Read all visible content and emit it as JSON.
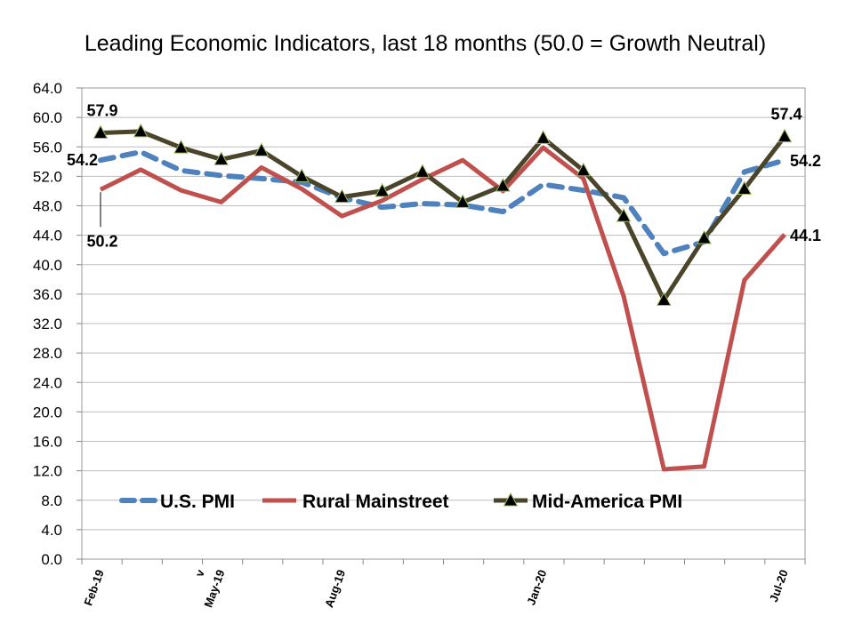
{
  "chart_data": {
    "type": "line",
    "title": "Leading Economic Indicators, last 18 months (50.0 = Growth Neutral)",
    "xlabel": "",
    "ylabel": "",
    "ylim": [
      0,
      64
    ],
    "yticks": [
      "0.0",
      "4.0",
      "8.0",
      "12.0",
      "16.0",
      "20.0",
      "24.0",
      "28.0",
      "32.0",
      "36.0",
      "40.0",
      "44.0",
      "48.0",
      "52.0",
      "56.0",
      "60.0",
      "64.0"
    ],
    "x_tick_labels": [
      {
        "index": 0,
        "label": "Feb-19"
      },
      {
        "index": 2.5,
        "label": "v"
      },
      {
        "index": 3,
        "label": "May-19"
      },
      {
        "index": 6,
        "label": "Aug-19"
      },
      {
        "index": 11,
        "label": "Jan-20"
      },
      {
        "index": 17,
        "label": "Jul-20"
      }
    ],
    "grid": true,
    "legend_position": "lower-left",
    "series": [
      {
        "name": "U.S. PMI",
        "color": "#4f81bd",
        "style": "dashed",
        "marker": "none",
        "values": [
          54.2,
          55.3,
          52.8,
          52.1,
          51.7,
          51.2,
          49.1,
          47.8,
          48.3,
          48.1,
          47.2,
          50.9,
          50.1,
          49.1,
          41.5,
          43.1,
          52.6,
          54.2
        ]
      },
      {
        "name": "Rural Mainstreet",
        "color": "#c0504d",
        "style": "solid",
        "marker": "none",
        "values": [
          50.2,
          52.9,
          50.1,
          48.5,
          53.2,
          50.3,
          46.6,
          48.7,
          51.6,
          54.2,
          50.0,
          55.9,
          51.7,
          35.7,
          12.2,
          12.6,
          37.9,
          44.1
        ]
      },
      {
        "name": "Mid-America PMI",
        "color": "#4a452a",
        "style": "solid",
        "marker": "triangle",
        "values": [
          57.9,
          58.1,
          55.9,
          54.3,
          55.5,
          52.0,
          49.2,
          50.0,
          52.6,
          48.5,
          50.7,
          57.2,
          52.8,
          46.6,
          35.2,
          43.6,
          50.3,
          57.4
        ]
      }
    ],
    "annotations": [
      {
        "text": "57.9",
        "series": 2,
        "index": 0,
        "anchor": "above"
      },
      {
        "text": "54.2",
        "series": 0,
        "index": 0,
        "anchor": "left"
      },
      {
        "text": "50.2",
        "series": 1,
        "index": 0,
        "anchor": "below"
      },
      {
        "text": "57.4",
        "series": 2,
        "index": 17,
        "anchor": "above"
      },
      {
        "text": "54.2",
        "series": 0,
        "index": 17,
        "anchor": "right"
      },
      {
        "text": "44.1",
        "series": 1,
        "index": 17,
        "anchor": "right"
      }
    ]
  }
}
